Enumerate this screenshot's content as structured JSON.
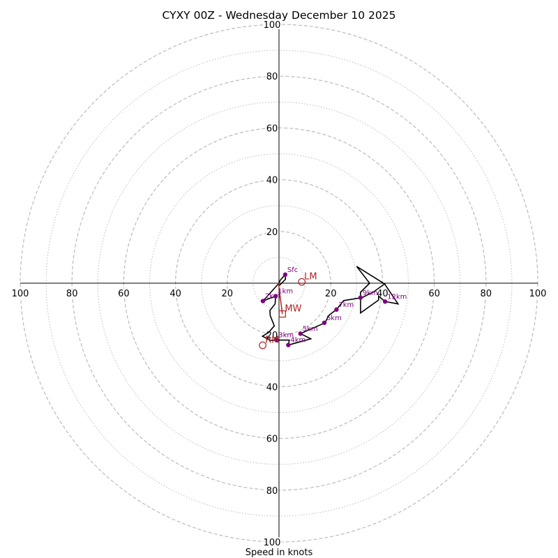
{
  "chart_data": {
    "type": "hodograph",
    "title": "CYXY 00Z - Wednesday December 10 2025",
    "xlabel": "Speed in knots",
    "units": "knots",
    "range": 100,
    "ring_major": [
      20,
      40,
      60,
      80,
      100
    ],
    "ring_minor": [
      10,
      30,
      50,
      70,
      90
    ],
    "tick_labels": [
      "20",
      "40",
      "60",
      "80",
      "100"
    ],
    "trace": [
      [
        0,
        -1
      ],
      [
        2.5,
        1.5
      ],
      [
        2.4,
        3.3
      ],
      [
        0.5,
        1.2
      ],
      [
        0,
        0
      ],
      [
        -6.2,
        -6.9
      ],
      [
        -1.3,
        -5.0
      ],
      [
        -1.5,
        -8.0
      ],
      [
        -3.5,
        -10.5
      ],
      [
        -3.4,
        -12.5
      ],
      [
        -1.8,
        -16.5
      ],
      [
        -4.0,
        -19.0
      ],
      [
        -6.4,
        -20.5
      ],
      [
        -3.3,
        -22.1
      ],
      [
        -1.0,
        -22.0
      ],
      [
        4.0,
        -22.0
      ],
      [
        3.6,
        -23.9
      ],
      [
        12.3,
        -21.5
      ],
      [
        8.3,
        -19.5
      ],
      [
        17.8,
        -15.3
      ],
      [
        19.3,
        -12.4
      ],
      [
        22.2,
        -10.2
      ],
      [
        25.0,
        -6.7
      ],
      [
        32.0,
        -5.6
      ],
      [
        36.5,
        -3.4
      ],
      [
        40.8,
        -0.3
      ],
      [
        30.0,
        6.5
      ],
      [
        35.0,
        0.0
      ],
      [
        31.5,
        -3.5
      ],
      [
        31.5,
        -11.5
      ],
      [
        38.5,
        -6.5
      ],
      [
        38.5,
        -5.0
      ],
      [
        41.0,
        -7.1
      ],
      [
        46.0,
        -8.0
      ],
      [
        40.8,
        -0.3
      ]
    ],
    "markers": [
      {
        "label": "Sfc",
        "u": 2.4,
        "v": 3.3
      },
      {
        "label": "1km",
        "u": -1.3,
        "v": -5.0
      },
      {
        "label": "2km",
        "u": -6.2,
        "v": -6.9
      },
      {
        "label": "3km",
        "u": -1.0,
        "v": -22.0
      },
      {
        "label": "4km",
        "u": 3.6,
        "v": -23.9
      },
      {
        "label": "5km",
        "u": 8.3,
        "v": -19.5
      },
      {
        "label": "6km",
        "u": 17.5,
        "v": -15.3
      },
      {
        "label": "7km",
        "u": 22.2,
        "v": -10.2
      },
      {
        "label": "9km",
        "u": 31.5,
        "v": -5.6
      },
      {
        "label": "12km",
        "u": 41.0,
        "v": -7.1
      }
    ],
    "points": [
      {
        "label": "LM",
        "u": 8.8,
        "v": 0.5,
        "shape": "circle"
      },
      {
        "label": "RM",
        "u": -6.3,
        "v": -24.0,
        "shape": "circle"
      },
      {
        "label": "MW",
        "u": 1.3,
        "v": -11.9,
        "shape": "square"
      }
    ],
    "shear_vector": {
      "from": [
        -0.2,
        0
      ],
      "to": [
        1.3,
        -11.9
      ]
    }
  },
  "colors": {
    "trace": "#000000",
    "markers": "#800080",
    "storm_motion": "#b22222",
    "grid": "#bbbbbb"
  }
}
